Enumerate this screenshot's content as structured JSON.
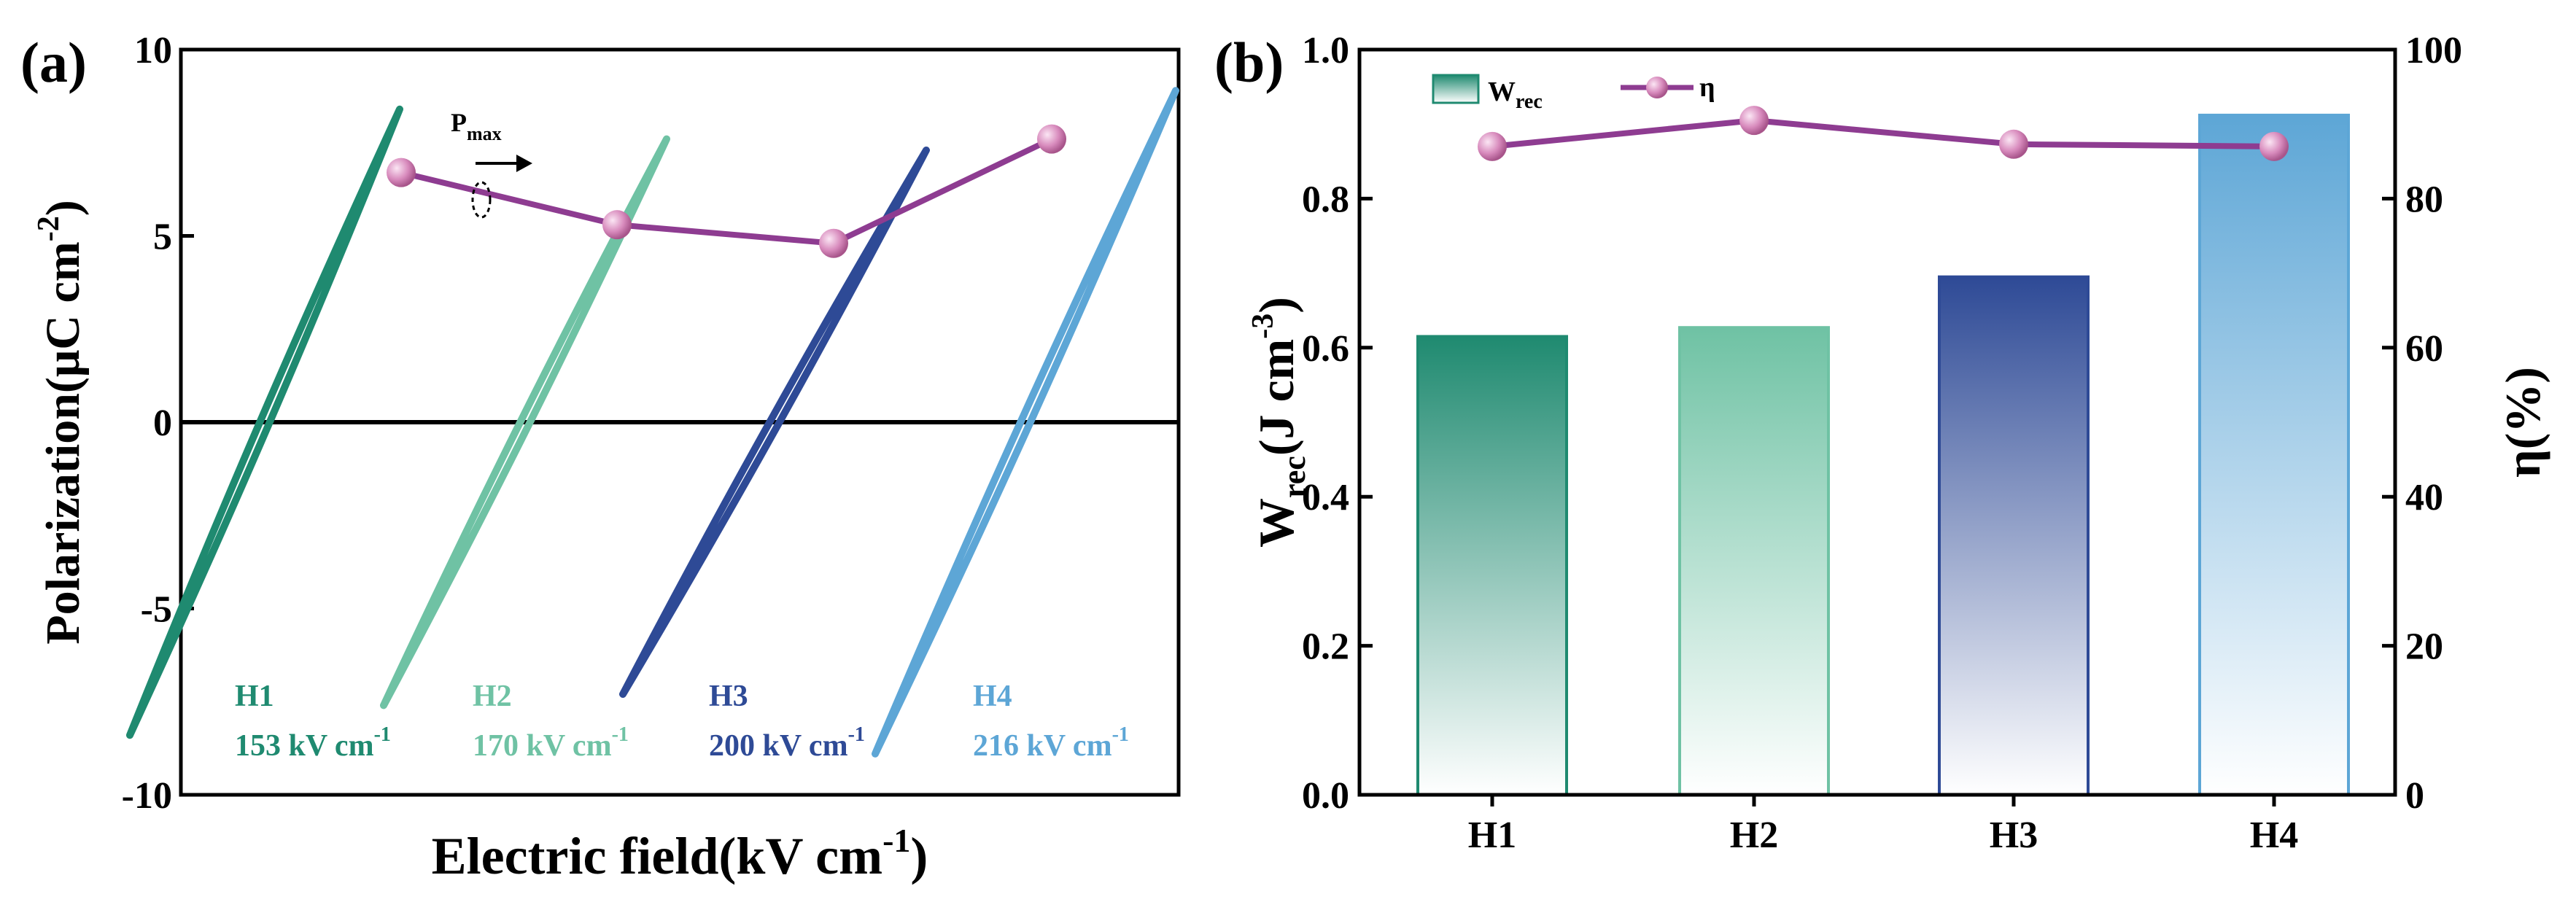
{
  "chart_data": [
    {
      "type": "line",
      "panel_label": "(a)",
      "xlabel": "Electric field(kV cm",
      "xlabel_sup": "-1",
      "xlabel_tail": ")",
      "ylabel": "Polarization(μC cm",
      "ylabel_sup": "-2",
      "ylabel_tail": ")",
      "ylim": [
        -10,
        10
      ],
      "yticks": [
        "10",
        "5",
        "0",
        "-5",
        "-10"
      ],
      "ytick_values": [
        10,
        5,
        0,
        -5,
        -10
      ],
      "pmax_label": "P",
      "pmax_sub": "max",
      "loops": [
        {
          "name": "H1",
          "field_label": "153 kV cm",
          "color": "#1f8a70",
          "pmax": 8.4,
          "pmin": -8.4,
          "emax": 153
        },
        {
          "name": "H2",
          "field_label": "170 kV cm",
          "color": "#6fc2a4",
          "pmax": 7.6,
          "pmin": -7.6,
          "emax": 170
        },
        {
          "name": "H3",
          "field_label": "200 kV cm",
          "color": "#2e4a96",
          "pmax": 7.3,
          "pmin": -7.3,
          "emax": 200
        },
        {
          "name": "H4",
          "field_label": "216 kV cm",
          "color": "#5da6d6",
          "pmax": 8.9,
          "pmin": -8.9,
          "emax": 216
        }
      ],
      "field_unit_sup": "-1",
      "pmax_points": [
        6.7,
        5.3,
        4.8,
        7.6
      ],
      "pmax_color": "#8e3c91"
    },
    {
      "type": "bar",
      "panel_label": "(b)",
      "categories": [
        "H1",
        "H2",
        "H3",
        "H4"
      ],
      "series": [
        {
          "name": "W",
          "name_sub": "rec",
          "values": [
            0.615,
            0.627,
            0.695,
            0.912
          ],
          "colors": [
            "#1f8a70",
            "#6fc2a4",
            "#2e4a96",
            "#5da6d6"
          ]
        },
        {
          "name": "η",
          "values": [
            87,
            90.5,
            87.3,
            87
          ],
          "color": "#8e3c91",
          "axis": "right"
        }
      ],
      "ylabel_left": "W",
      "ylabel_left_sub": "rec",
      "ylabel_left_tail": "(J cm",
      "ylabel_left_sup": "-3",
      "ylabel_left_end": ")",
      "ylabel_right": "η(%)",
      "ylim": [
        0,
        1.0
      ],
      "y2lim": [
        0,
        100
      ],
      "yticks": [
        "0.0",
        "0.2",
        "0.4",
        "0.6",
        "0.8",
        "1.0"
      ],
      "ytick_values": [
        0,
        0.2,
        0.4,
        0.6,
        0.8,
        1.0
      ],
      "y2ticks": [
        "0",
        "20",
        "40",
        "60",
        "80",
        "100"
      ],
      "y2tick_values": [
        0,
        20,
        40,
        60,
        80,
        100
      ],
      "legend_position": "top-left"
    }
  ]
}
